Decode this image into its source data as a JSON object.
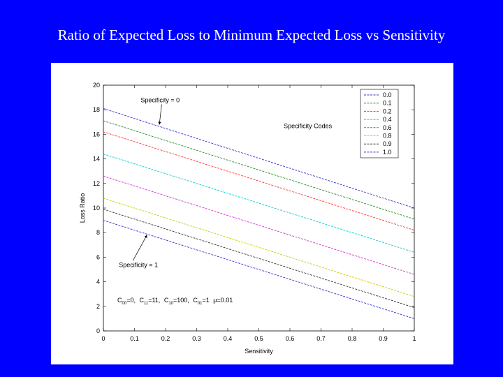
{
  "slide": {
    "title": "Ratio of Expected Loss to Minimum Expected Loss vs Sensitivity"
  },
  "chart_data": {
    "type": "line",
    "title": "",
    "xlabel": "Sensitivity",
    "ylabel": "Loss Ratio",
    "xlim": [
      0,
      1
    ],
    "ylim": [
      0,
      20
    ],
    "xticks": [
      "0",
      "0.1",
      "0.2",
      "0.3",
      "0.4",
      "0.5",
      "0.6",
      "0.7",
      "0.8",
      "0.9",
      "1"
    ],
    "yticks": [
      "0",
      "2",
      "4",
      "6",
      "8",
      "10",
      "12",
      "14",
      "16",
      "18",
      "20"
    ],
    "grid": false,
    "legend_position": "top-right",
    "legend_title": "Specificity Codes",
    "series": [
      {
        "name": "0.0",
        "color": "#3333cc",
        "x": [
          0,
          1
        ],
        "y": [
          18.1,
          10.0
        ]
      },
      {
        "name": "0.1",
        "color": "#228b22",
        "x": [
          0,
          1
        ],
        "y": [
          17.1,
          9.1
        ]
      },
      {
        "name": "0.2",
        "color": "#ff3333",
        "x": [
          0,
          1
        ],
        "y": [
          16.2,
          8.2
        ]
      },
      {
        "name": "0.4",
        "color": "#00cccc",
        "x": [
          0,
          1
        ],
        "y": [
          14.4,
          6.4
        ]
      },
      {
        "name": "0.6",
        "color": "#cc33cc",
        "x": [
          0,
          1
        ],
        "y": [
          12.6,
          4.6
        ]
      },
      {
        "name": "0.8",
        "color": "#cccc00",
        "x": [
          0,
          1
        ],
        "y": [
          10.8,
          2.8
        ]
      },
      {
        "name": "0.9",
        "color": "#333333",
        "x": [
          0,
          1
        ],
        "y": [
          9.9,
          1.9
        ]
      },
      {
        "name": "1.0",
        "color": "#3333cc",
        "x": [
          0,
          1
        ],
        "y": [
          9.0,
          1.0
        ]
      }
    ],
    "annotations": [
      {
        "id": "spec0",
        "text": "Specificity = 0",
        "x": 0.12,
        "y": 18.6,
        "arrow_to": [
          0.18,
          16.8
        ]
      },
      {
        "id": "spec1",
        "text": "Specificity = 1",
        "x": 0.05,
        "y": 5.2,
        "arrow_to": [
          0.14,
          7.8
        ]
      },
      {
        "id": "legend-label",
        "text": "Specificity Codes",
        "x": 0.58,
        "y": 16.5
      }
    ],
    "parameters": {
      "c00": {
        "prefix": "C",
        "sub": "00",
        "value": "=0,"
      },
      "c11": {
        "prefix": "C",
        "sub": "11",
        "value": "=11,"
      },
      "c10": {
        "prefix": "C",
        "sub": "10",
        "value": "=100,"
      },
      "c01": {
        "prefix": "C",
        "sub": "01",
        "value": "=1"
      },
      "mu": {
        "symbol": "μ",
        "value": "=0.01"
      }
    }
  }
}
